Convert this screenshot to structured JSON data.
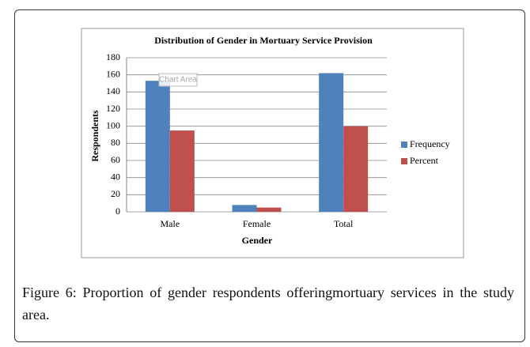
{
  "chart_data": {
    "type": "bar",
    "title": "Distribution of Gender in Mortuary  Service Provision",
    "x_label": "Gender",
    "y_label": "Respondents",
    "categories": [
      "Male",
      "Female",
      "Total"
    ],
    "series": [
      {
        "name": "Frequency",
        "color": "#4f81bd",
        "values": [
          153,
          8,
          162
        ]
      },
      {
        "name": "Percent",
        "color": "#c0504d",
        "values": [
          95,
          5,
          100
        ]
      }
    ],
    "ylim": [
      0,
      180
    ],
    "yticks": [
      0,
      20,
      40,
      60,
      80,
      100,
      120,
      140,
      160,
      180
    ],
    "grid": true,
    "legend": "right",
    "tooltip": "Chart Area"
  },
  "caption": "Figure 6: Proportion of gender respondents offeringmortuary services in the study area."
}
